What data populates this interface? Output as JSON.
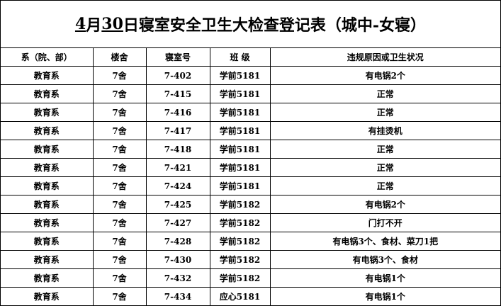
{
  "title_parts": [
    "4",
    "月",
    "30",
    "日寝室安全卫生大检查登记表（城中-女寝）"
  ],
  "table": {
    "header": [
      "系（院、部）",
      "楼舍",
      "寝室号",
      "班  级",
      "违规原因或卫生状况"
    ],
    "rows": [
      [
        "教育系",
        "7舍",
        "7-402",
        "学前5181",
        "有电锅2个"
      ],
      [
        "教育系",
        "7舍",
        "7-415",
        "学前5181",
        "正常"
      ],
      [
        "教育系",
        "7舍",
        "7-416",
        "学前5181",
        "正常"
      ],
      [
        "教育系",
        "7舍",
        "7-417",
        "学前5181",
        "有挂烫机"
      ],
      [
        "教育系",
        "7舍",
        "7-418",
        "学前5181",
        "正常"
      ],
      [
        "教育系",
        "7舍",
        "7-421",
        "学前5181",
        "正常"
      ],
      [
        "教育系",
        "7舍",
        "7-424",
        "学前5181",
        "正常"
      ],
      [
        "教育系",
        "7舍",
        "7-425",
        "学前5182",
        "有电锅2个"
      ],
      [
        "教育系",
        "7舍",
        "7-427",
        "学前5182",
        "门打不开"
      ],
      [
        "教育系",
        "7舍",
        "7-428",
        "学前5182",
        "有电锅3个、食材、菜刀1把"
      ],
      [
        "教育系",
        "7舍",
        "7-430",
        "学前5182",
        "有电锅3个、食材"
      ],
      [
        "教育系",
        "7舍",
        "7-432",
        "学前5182",
        "有电锅1个"
      ],
      [
        "教育系",
        "7舍",
        "7-434",
        "应心5181",
        "有电锅1个"
      ]
    ]
  }
}
